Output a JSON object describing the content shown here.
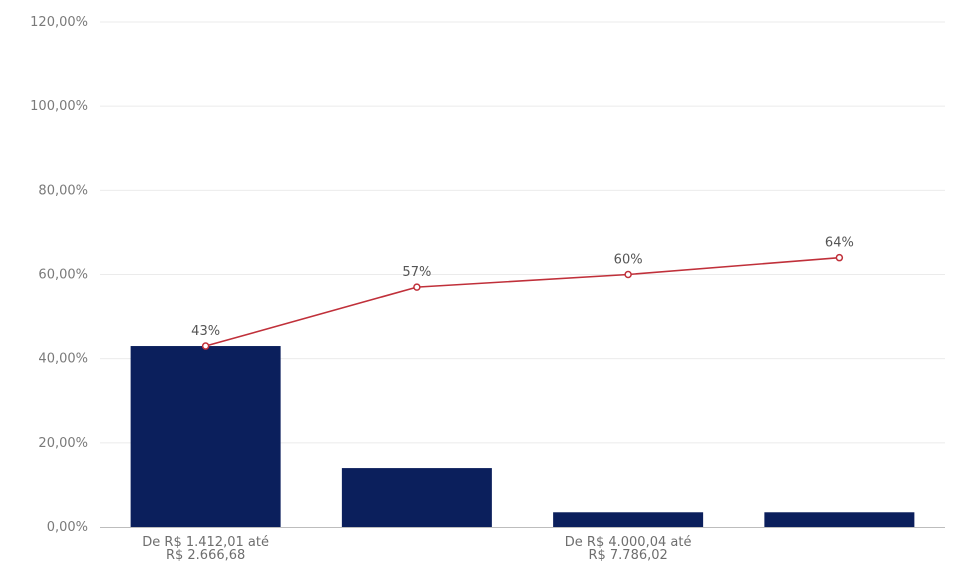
{
  "colors": {
    "bar": "#0b1f5c",
    "line": "#c0303a",
    "grid": "#ebebeb",
    "axis": "#bdbdbd",
    "tick_text": "#7a7a7a"
  },
  "chart_data": {
    "type": "bar",
    "title": "",
    "xlabel": "",
    "ylabel": "",
    "ylim": [
      0,
      120
    ],
    "y_ticks": [
      "0,00%",
      "20,00%",
      "40,00%",
      "60,00%",
      "80,00%",
      "100,00%",
      "120,00%"
    ],
    "grid": true,
    "categories": [
      [
        "De  R$ 1.412,01 até",
        "R$ 2.666,68"
      ],
      [
        "",
        ""
      ],
      [
        "De  R$ 4.000,04 até",
        "R$ 7.786,02"
      ],
      [
        "",
        ""
      ]
    ],
    "series": [
      {
        "type": "bar",
        "values": [
          43,
          14,
          3.5,
          3.5
        ]
      },
      {
        "type": "line",
        "values": [
          43,
          57,
          60,
          64
        ],
        "data_labels": [
          "43%",
          "57%",
          "60%",
          "64%"
        ]
      }
    ]
  }
}
